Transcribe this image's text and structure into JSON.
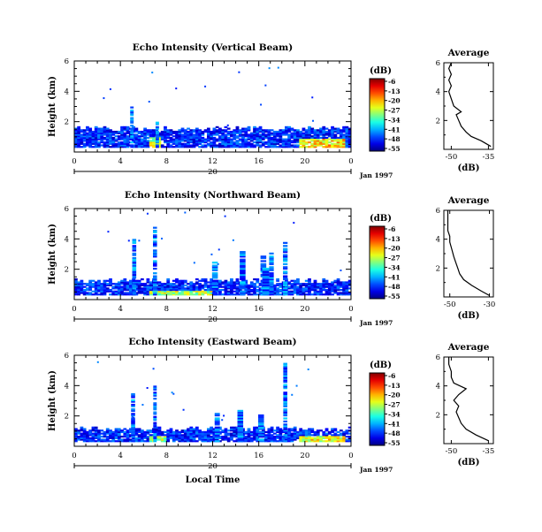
{
  "chart_data": [
    {
      "type": "heatmap",
      "title": "Echo Intensity (Vertical Beam)",
      "ylabel": "Height (km)",
      "x_ticks": [
        "0",
        "4",
        "8",
        "12",
        "16",
        "20",
        "0"
      ],
      "y_ticks": [
        "2",
        "4",
        "6"
      ],
      "xlim": [
        0,
        24
      ],
      "ylim": [
        0,
        6
      ],
      "date_bar": {
        "label": "20",
        "date": "Jan 1997"
      },
      "colorbar": {
        "unit": "(dB)",
        "ticks": [
          "-6",
          "-13",
          "-20",
          "-27",
          "-34",
          "-41",
          "-48",
          "-55"
        ]
      },
      "echo_layers": [
        {
          "x0": 0,
          "x1": 24,
          "top": 1.5,
          "intensity": -46
        },
        {
          "x0": 19.5,
          "x1": 23.5,
          "top": 1.0,
          "intensity": -20
        },
        {
          "x0": 6.5,
          "x1": 7.5,
          "top": 1.2,
          "intensity": -24
        }
      ],
      "plumes": [
        {
          "x": 5.0,
          "top": 3.0,
          "width": 0.3
        },
        {
          "x": 7.2,
          "top": 2.0,
          "width": 0.3
        }
      ],
      "average_profile": {
        "title": "Average",
        "xlabel": "(dB)",
        "x_ticks": [
          "-50",
          "-35"
        ],
        "y_ticks": [
          "2",
          "4",
          "6"
        ],
        "xlim": [
          -53,
          -33
        ],
        "ylim": [
          0,
          6
        ],
        "points": [
          [
            -34,
            0.2
          ],
          [
            -38,
            0.6
          ],
          [
            -42,
            0.9
          ],
          [
            -44,
            1.2
          ],
          [
            -46,
            1.6
          ],
          [
            -47,
            2.0
          ],
          [
            -48,
            2.4
          ],
          [
            -46,
            2.6
          ],
          [
            -49,
            3.0
          ],
          [
            -50,
            3.5
          ],
          [
            -51,
            4.0
          ],
          [
            -50,
            4.4
          ],
          [
            -51,
            4.8
          ],
          [
            -50,
            5.2
          ],
          [
            -51,
            5.6
          ],
          [
            -50,
            6.0
          ]
        ]
      }
    },
    {
      "type": "heatmap",
      "title": "Echo Intensity (Northward Beam)",
      "ylabel": "Height (km)",
      "x_ticks": [
        "0",
        "4",
        "8",
        "12",
        "16",
        "20",
        "0"
      ],
      "y_ticks": [
        "2",
        "4",
        "6"
      ],
      "xlim": [
        0,
        24
      ],
      "ylim": [
        0,
        6
      ],
      "date_bar": {
        "label": "20",
        "date": "Jan 1997"
      },
      "colorbar": {
        "unit": "(dB)",
        "ticks": [
          "-6",
          "-13",
          "-20",
          "-27",
          "-34",
          "-41",
          "-48",
          "-55"
        ]
      },
      "echo_layers": [
        {
          "x0": 0,
          "x1": 24,
          "top": 1.2,
          "intensity": -44
        },
        {
          "x0": 6.5,
          "x1": 12,
          "top": 0.7,
          "intensity": -25
        }
      ],
      "plumes": [
        {
          "x": 5.2,
          "top": 4.0,
          "width": 0.35
        },
        {
          "x": 7.0,
          "top": 4.7,
          "width": 0.35
        },
        {
          "x": 12.2,
          "top": 2.5,
          "width": 0.5
        },
        {
          "x": 14.6,
          "top": 3.2,
          "width": 0.5
        },
        {
          "x": 16.4,
          "top": 2.9,
          "width": 0.5
        },
        {
          "x": 17.1,
          "top": 3.1,
          "width": 0.4
        },
        {
          "x": 18.3,
          "top": 3.8,
          "width": 0.4
        },
        {
          "x": 16.6,
          "top": 2.2,
          "width": 0.6
        }
      ],
      "average_profile": {
        "title": "Average",
        "xlabel": "(dB)",
        "x_ticks": [
          "-50",
          "-30"
        ],
        "y_ticks": [
          "2",
          "4",
          "6"
        ],
        "xlim": [
          -53,
          -28
        ],
        "ylim": [
          0,
          6
        ],
        "points": [
          [
            -30,
            0.1
          ],
          [
            -34,
            0.4
          ],
          [
            -39,
            0.8
          ],
          [
            -43,
            1.2
          ],
          [
            -45,
            1.6
          ],
          [
            -46,
            2.0
          ],
          [
            -47,
            2.4
          ],
          [
            -48,
            2.8
          ],
          [
            -49,
            3.3
          ],
          [
            -50,
            3.8
          ],
          [
            -50,
            4.2
          ],
          [
            -51,
            4.6
          ],
          [
            -51,
            5.0
          ],
          [
            -51,
            5.5
          ],
          [
            -51,
            6.0
          ]
        ]
      }
    },
    {
      "type": "heatmap",
      "title": "Echo Intensity (Eastward Beam)",
      "ylabel": "Height (km)",
      "x_ticks": [
        "0",
        "4",
        "8",
        "12",
        "16",
        "20",
        "0"
      ],
      "y_ticks": [
        "2",
        "4",
        "6"
      ],
      "xlim": [
        0,
        24
      ],
      "ylim": [
        0,
        6
      ],
      "date_bar": {
        "label": "20",
        "date": "Jan 1997"
      },
      "xlabel": "Local Time",
      "colorbar": {
        "unit": "(dB)",
        "ticks": [
          "-6",
          "-13",
          "-20",
          "-27",
          "-34",
          "-41",
          "-48",
          "-55"
        ]
      },
      "echo_layers": [
        {
          "x0": 0,
          "x1": 24,
          "top": 1.1,
          "intensity": -44
        },
        {
          "x0": 19.5,
          "x1": 23.5,
          "top": 0.8,
          "intensity": -22
        },
        {
          "x0": 6.5,
          "x1": 8,
          "top": 0.8,
          "intensity": -26
        }
      ],
      "plumes": [
        {
          "x": 5.1,
          "top": 3.6,
          "width": 0.35
        },
        {
          "x": 7.0,
          "top": 4.0,
          "width": 0.3
        },
        {
          "x": 12.4,
          "top": 2.2,
          "width": 0.45
        },
        {
          "x": 14.4,
          "top": 2.4,
          "width": 0.5
        },
        {
          "x": 16.2,
          "top": 2.1,
          "width": 0.5
        },
        {
          "x": 18.3,
          "top": 5.4,
          "width": 0.35
        }
      ],
      "average_profile": {
        "title": "Average",
        "xlabel": "(dB)",
        "x_ticks": [
          "-50",
          "-35"
        ],
        "y_ticks": [
          "2",
          "4",
          "6"
        ],
        "xlim": [
          -53,
          -33
        ],
        "ylim": [
          0,
          6
        ],
        "points": [
          [
            -35,
            0.2
          ],
          [
            -40,
            0.6
          ],
          [
            -44,
            1.0
          ],
          [
            -46,
            1.4
          ],
          [
            -47,
            1.8
          ],
          [
            -48,
            2.2
          ],
          [
            -47,
            2.6
          ],
          [
            -49,
            3.0
          ],
          [
            -47,
            3.4
          ],
          [
            -44,
            3.8
          ],
          [
            -49,
            4.2
          ],
          [
            -50,
            4.6
          ],
          [
            -50,
            5.0
          ],
          [
            -51,
            5.5
          ],
          [
            -51,
            6.0
          ]
        ]
      }
    }
  ]
}
